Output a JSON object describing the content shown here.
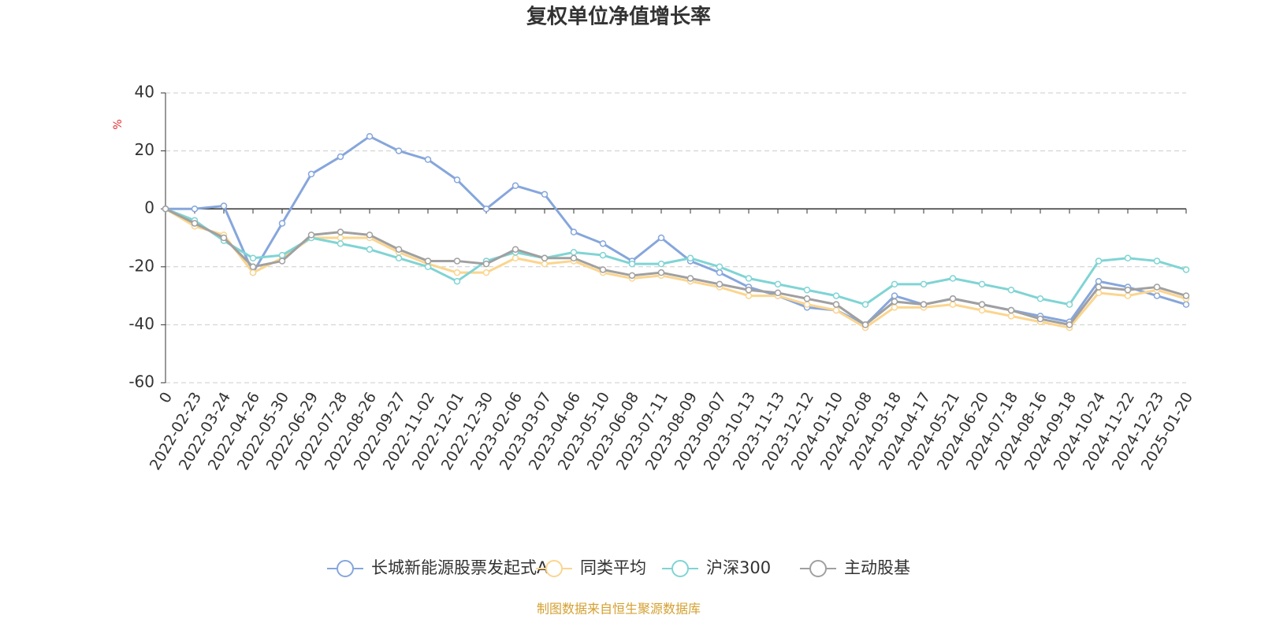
{
  "chart_data": {
    "type": "line",
    "title": "复权单位净值增长率",
    "y_label": "%",
    "source": "制图数据来自恒生聚源数据库",
    "categories": [
      "0",
      "2022-02-23",
      "2022-03-24",
      "2022-04-26",
      "2022-05-30",
      "2022-06-29",
      "2022-07-28",
      "2022-08-26",
      "2022-09-27",
      "2022-11-02",
      "2022-12-01",
      "2022-12-30",
      "2023-02-06",
      "2023-03-07",
      "2023-04-06",
      "2023-05-10",
      "2023-06-08",
      "2023-07-11",
      "2023-08-09",
      "2023-09-07",
      "2023-10-13",
      "2023-11-13",
      "2023-12-12",
      "2024-01-10",
      "2024-02-08",
      "2024-03-18",
      "2024-04-17",
      "2024-05-21",
      "2024-06-20",
      "2024-07-18",
      "2024-08-16",
      "2024-09-18",
      "2024-10-24",
      "2024-11-22",
      "2024-12-23",
      "2025-01-20"
    ],
    "series": [
      {
        "name": "长城新能源股票发起式A",
        "color": "#86a6dc",
        "values": [
          0,
          0,
          1,
          -22,
          -5,
          12,
          18,
          25,
          20,
          17,
          10,
          0,
          8,
          5,
          -8,
          -12,
          -18,
          -10,
          -18,
          -22,
          -27,
          -30,
          -34,
          -35,
          -40,
          -30,
          -33,
          -31,
          -33,
          -35,
          -37,
          -39,
          -25,
          -27,
          -30,
          -33
        ]
      },
      {
        "name": "同类平均",
        "color": "#fbd58f",
        "values": [
          0,
          -6,
          -9,
          -22,
          -17,
          -10,
          -10,
          -10,
          -15,
          -19,
          -22,
          -22,
          -17,
          -19,
          -18,
          -22,
          -24,
          -23,
          -25,
          -27,
          -30,
          -30,
          -33,
          -35,
          -41,
          -34,
          -34,
          -33,
          -35,
          -37,
          -39,
          -41,
          -29,
          -30,
          -28,
          -31
        ]
      },
      {
        "name": "沪深300",
        "color": "#80d4d4",
        "values": [
          0,
          -4,
          -11,
          -17,
          -16,
          -10,
          -12,
          -14,
          -17,
          -20,
          -25,
          -18,
          -15,
          -17,
          -15,
          -16,
          -19,
          -19,
          -17,
          -20,
          -24,
          -26,
          -28,
          -30,
          -33,
          -26,
          -26,
          -24,
          -26,
          -28,
          -31,
          -33,
          -18,
          -17,
          -18,
          -21
        ]
      },
      {
        "name": "主动股基",
        "color": "#a0a0a0",
        "values": [
          0,
          -5,
          -10,
          -20,
          -18,
          -9,
          -8,
          -9,
          -14,
          -18,
          -18,
          -19,
          -14,
          -17,
          -17,
          -21,
          -23,
          -22,
          -24,
          -26,
          -28,
          -29,
          -31,
          -33,
          -40,
          -32,
          -33,
          -31,
          -33,
          -35,
          -38,
          -40,
          -27,
          -28,
          -27,
          -30
        ]
      }
    ],
    "ylim": [
      -60,
      40
    ],
    "yticks": [
      -60,
      -40,
      -20,
      0,
      20,
      40
    ],
    "grid": true
  }
}
